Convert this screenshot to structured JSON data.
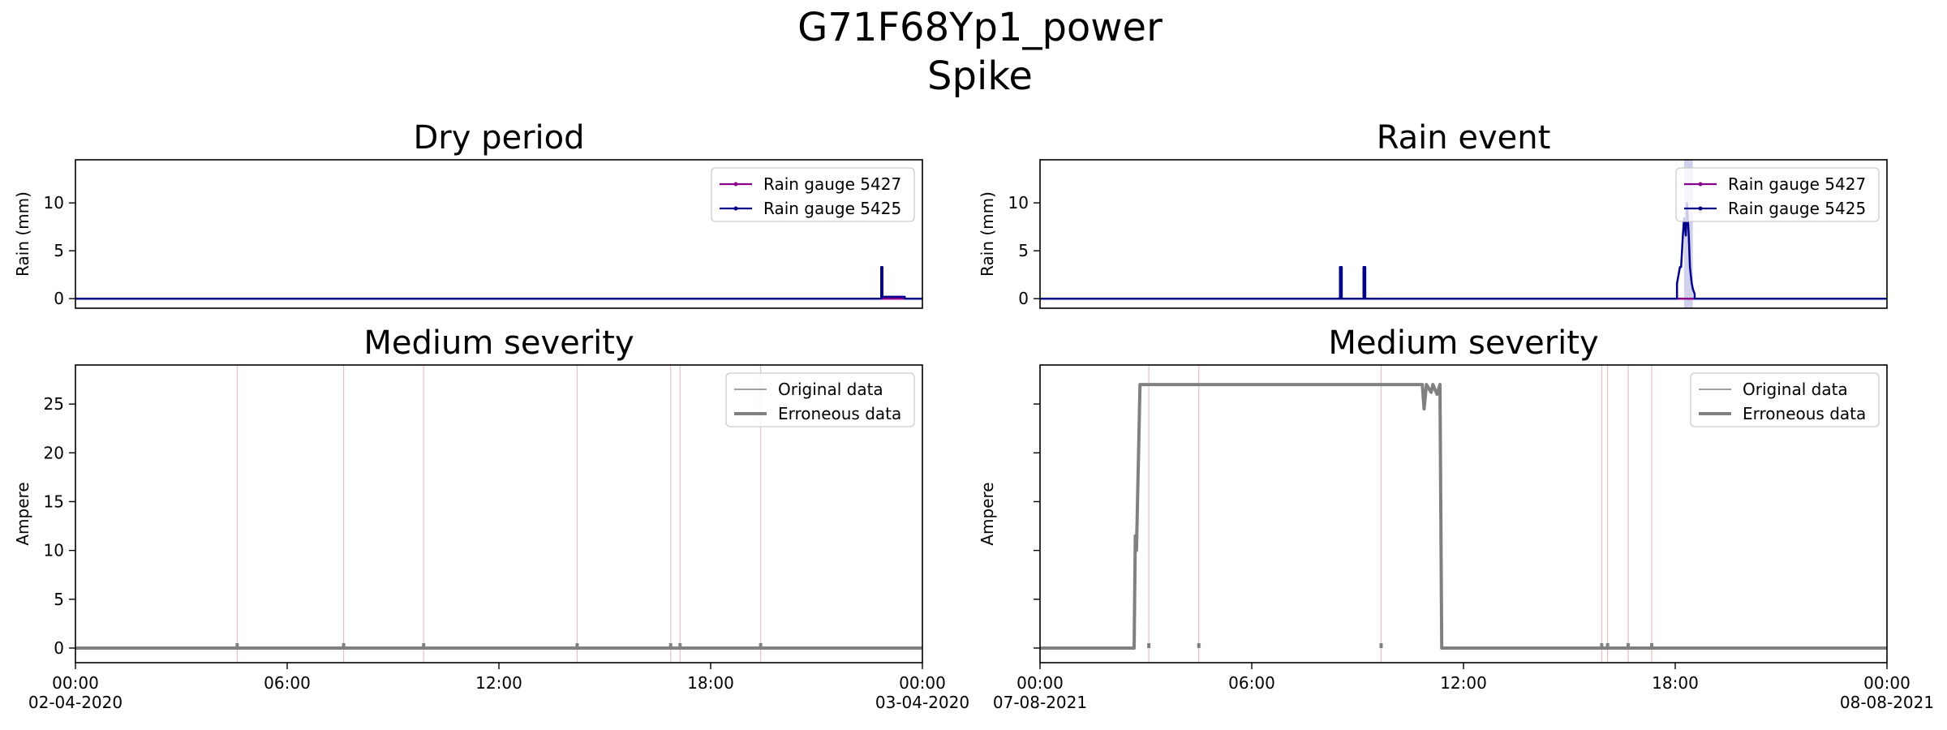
{
  "figure": {
    "title_line1": "G71F68Yp1_power",
    "title_line2": "Spike"
  },
  "colors": {
    "gauge_5427": "#8b008b",
    "gauge_5425": "#00008b",
    "data_line": "#808080",
    "marker_lines": "#d98c8c",
    "rain_span": "#9999d6"
  },
  "chart_data": [
    {
      "type": "line",
      "panel": "top-left",
      "title": "Dry period",
      "ylabel": "Rain (mm)",
      "ylim": [
        -1,
        14.5
      ],
      "yticks": [
        0,
        5,
        10
      ],
      "xlim": [
        "2020-04-02T00:00",
        "2020-04-03T00:00"
      ],
      "legend": {
        "placement": "top-right",
        "entries": [
          "Rain gauge 5427",
          "Rain gauge 5425"
        ]
      },
      "series": [
        {
          "name": "Rain gauge 5427",
          "x": [
            "2020-04-02T00:00",
            "2020-04-03T00:00"
          ],
          "y": [
            0,
            0
          ]
        },
        {
          "name": "Rain gauge 5425",
          "x": [
            "2020-04-02T00:00",
            "2020-04-02T22:50",
            "2020-04-02T22:50",
            "2020-04-02T22:52",
            "2020-04-02T22:52",
            "2020-04-02T23:30",
            "2020-04-02T23:30",
            "2020-04-03T00:00"
          ],
          "y": [
            0,
            0,
            3.3,
            3.3,
            0.2,
            0.2,
            0,
            0
          ]
        }
      ]
    },
    {
      "type": "line",
      "panel": "top-right",
      "title": "Rain event",
      "ylabel": "Rain (mm)",
      "ylim": [
        -1,
        14.5
      ],
      "yticks": [
        0,
        5,
        10
      ],
      "xlim": [
        "2021-08-07T00:00",
        "2021-08-08T00:00"
      ],
      "legend": {
        "placement": "top-right",
        "entries": [
          "Rain gauge 5427",
          "Rain gauge 5425"
        ]
      },
      "rain_spans": [
        [
          "2021-08-07T18:15",
          "2021-08-07T18:30"
        ]
      ],
      "series": [
        {
          "name": "Rain gauge 5427",
          "x": [
            "2021-08-07T00:00",
            "2021-08-07T18:15",
            "2021-08-07T18:15",
            "2021-08-07T18:35",
            "2021-08-07T18:35",
            "2021-08-08T00:00"
          ],
          "y": [
            0,
            0,
            0,
            0,
            0,
            0
          ]
        },
        {
          "name": "Rain gauge 5425",
          "x": [
            "2021-08-07T00:00",
            "2021-08-07T08:30",
            "2021-08-07T08:30",
            "2021-08-07T08:33",
            "2021-08-07T08:33",
            "2021-08-07T09:10",
            "2021-08-07T09:10",
            "2021-08-07T09:13",
            "2021-08-07T09:13",
            "2021-08-07T18:03",
            "2021-08-07T18:03",
            "2021-08-07T18:08",
            "2021-08-07T18:10",
            "2021-08-07T18:13",
            "2021-08-07T18:15",
            "2021-08-07T18:18",
            "2021-08-07T18:20",
            "2021-08-07T18:23",
            "2021-08-07T18:25",
            "2021-08-07T18:28",
            "2021-08-07T18:30",
            "2021-08-07T18:33",
            "2021-08-07T18:33",
            "2021-08-08T00:00"
          ],
          "y": [
            0,
            0,
            3.3,
            3.3,
            0,
            0,
            3.3,
            3.3,
            0,
            0,
            1.6,
            3.3,
            3.3,
            6.6,
            8.4,
            6.6,
            10.0,
            6.6,
            3.3,
            1.6,
            1.0,
            0.5,
            0,
            0
          ]
        }
      ]
    },
    {
      "type": "line",
      "panel": "bottom-left",
      "title": "Medium severity",
      "ylabel": "Ampere",
      "ylim": [
        -1.5,
        29
      ],
      "yticks": [
        0,
        5,
        10,
        15,
        20,
        25
      ],
      "xlim": [
        "2020-04-02T00:00",
        "2020-04-03T00:00"
      ],
      "xticks": [
        "00:00",
        "06:00",
        "12:00",
        "18:00",
        "00:00"
      ],
      "xtick_dates": [
        "02-04-2020",
        "",
        "",
        "",
        "03-04-2020"
      ],
      "legend": {
        "placement": "top-right",
        "entries": [
          "Original data",
          "Erroneous data"
        ]
      },
      "marker_times": [
        "04:35",
        "07:36",
        "09:52",
        "14:13",
        "16:52",
        "17:08",
        "19:25"
      ],
      "series": [
        {
          "name": "Original data",
          "x": [
            "2020-04-02T00:00",
            "2020-04-03T00:00"
          ],
          "y": [
            0,
            0
          ]
        },
        {
          "name": "Erroneous data",
          "x": [
            "2020-04-02T00:00",
            "2020-04-03T00:00"
          ],
          "y": [
            0,
            0
          ],
          "spike_times": [
            "04:35",
            "07:36",
            "09:52",
            "14:13",
            "16:52",
            "17:08",
            "19:25"
          ],
          "spike_value": 0.5
        }
      ]
    },
    {
      "type": "line",
      "panel": "bottom-right",
      "title": "Medium severity",
      "ylabel": "Ampere",
      "ylim": [
        -1.5,
        29
      ],
      "yticks": [
        0,
        5,
        10,
        15,
        20,
        25
      ],
      "xlim": [
        "2021-08-07T00:00",
        "2021-08-08T00:00"
      ],
      "xticks": [
        "00:00",
        "06:00",
        "12:00",
        "18:00",
        "00:00"
      ],
      "xtick_dates": [
        "07-08-2021",
        "",
        "",
        "",
        "08-08-2021"
      ],
      "legend": {
        "placement": "top-right",
        "entries": [
          "Original data",
          "Erroneous data"
        ]
      },
      "marker_times": [
        "03:05",
        "04:30",
        "09:40",
        "15:55",
        "16:05",
        "16:40",
        "17:20"
      ],
      "series": [
        {
          "name": "Original data",
          "x": [
            "2021-08-07T00:00",
            "2021-08-07T02:40",
            "2021-08-07T02:42",
            "2021-08-07T02:44",
            "2021-08-07T02:50",
            "2021-08-07T10:50",
            "2021-08-07T10:53",
            "2021-08-07T10:57",
            "2021-08-07T11:05",
            "2021-08-07T11:08",
            "2021-08-07T11:15",
            "2021-08-07T11:20",
            "2021-08-07T11:23",
            "2021-08-08T00:00"
          ],
          "y": [
            0,
            0,
            11.5,
            10.0,
            27.0,
            27.0,
            24.5,
            27.0,
            26.2,
            27.0,
            26.0,
            27.0,
            0,
            0
          ]
        },
        {
          "name": "Erroneous data",
          "x": [
            "2021-08-07T00:00",
            "2021-08-07T02:40",
            "2021-08-07T02:42",
            "2021-08-07T02:44",
            "2021-08-07T02:50",
            "2021-08-07T10:50",
            "2021-08-07T10:53",
            "2021-08-07T10:57",
            "2021-08-07T11:05",
            "2021-08-07T11:08",
            "2021-08-07T11:15",
            "2021-08-07T11:20",
            "2021-08-07T11:23",
            "2021-08-08T00:00"
          ],
          "y": [
            0,
            0,
            11.5,
            10.0,
            27.0,
            27.0,
            24.5,
            27.0,
            26.2,
            27.0,
            26.0,
            27.0,
            0,
            0
          ],
          "spike_times": [
            "03:05",
            "04:30",
            "09:40",
            "15:55",
            "16:05",
            "16:40",
            "17:20"
          ],
          "spike_value": 0.5
        }
      ]
    }
  ]
}
